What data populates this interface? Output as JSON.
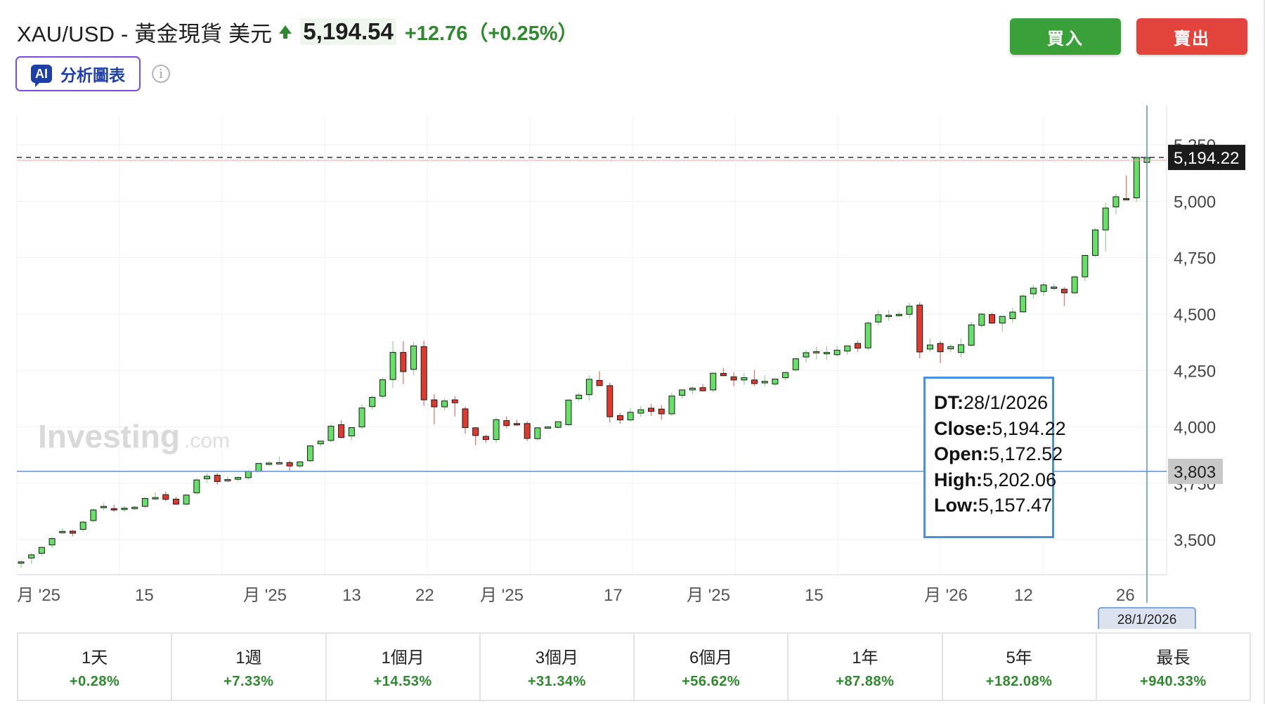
{
  "header": {
    "title": "XAU/USD - 黃金現貨 美元",
    "price": "5,194.54",
    "change": "+12.76（+0.25%）"
  },
  "ai_button": {
    "badge": "AI",
    "label": "分析圖表"
  },
  "info_icon": "info-icon",
  "actions": {
    "buy_label": "買入",
    "sell_label": "賣出"
  },
  "colors": {
    "up": "#3aa13a",
    "up_fill": "#66e066",
    "down": "#e03a2e",
    "accent": "#4a90e2",
    "text_green": "#2d8a2d"
  },
  "watermark": {
    "brand": "Investing",
    "suffix": ".com"
  },
  "tooltip": {
    "rows": [
      {
        "key": "DT:",
        "value": "28/1/2026"
      },
      {
        "key": "Close:",
        "value": "5,194.22"
      },
      {
        "key": "Open:",
        "value": "5,172.52"
      },
      {
        "key": "High:",
        "value": "5,202.06"
      },
      {
        "key": "Low:",
        "value": "5,157.47"
      }
    ]
  },
  "periods": [
    {
      "label": "1天",
      "change": "+0.28%"
    },
    {
      "label": "1週",
      "change": "+7.33%"
    },
    {
      "label": "1個月",
      "change": "+14.53%"
    },
    {
      "label": "3個月",
      "change": "+31.34%"
    },
    {
      "label": "6個月",
      "change": "+56.62%"
    },
    {
      "label": "1年",
      "change": "+87.88%"
    },
    {
      "label": "5年",
      "change": "+182.08%"
    },
    {
      "label": "最長",
      "change": "+940.33%"
    }
  ],
  "chart_data": {
    "type": "candlestick",
    "y_ticks": [
      3500,
      3750,
      4000,
      4250,
      4500,
      4750,
      5000,
      5250
    ],
    "y_tick_labels": [
      "3,500",
      "3,750",
      "4,000",
      "4,250",
      "4,500",
      "4,750",
      "5,000",
      "5,250"
    ],
    "ylim": [
      3345,
      5375
    ],
    "x_tick_labels": [
      "月 '25",
      "15",
      "月 '25",
      "13",
      "22",
      "月 '25",
      "17",
      "月 '25",
      "15",
      "月 '26",
      "12",
      "26"
    ],
    "last_price_label": "5,194.22",
    "last_price": 5194.22,
    "crosshair_price_label": "3,803",
    "crosshair_price": 3803,
    "crosshair_date_label": "28/1/2026",
    "candles": [
      {
        "o": 3402,
        "h": 3412,
        "l": 3375,
        "c": 3402
      },
      {
        "o": 3419,
        "h": 3441,
        "l": 3392,
        "c": 3433
      },
      {
        "o": 3440,
        "h": 3470,
        "l": 3428,
        "c": 3466
      },
      {
        "o": 3477,
        "h": 3513,
        "l": 3464,
        "c": 3505
      },
      {
        "o": 3537,
        "h": 3551,
        "l": 3527,
        "c": 3537
      },
      {
        "o": 3538,
        "h": 3545,
        "l": 3515,
        "c": 3529
      },
      {
        "o": 3546,
        "h": 3585,
        "l": 3536,
        "c": 3578
      },
      {
        "o": 3585,
        "h": 3640,
        "l": 3576,
        "c": 3632
      },
      {
        "o": 3644,
        "h": 3664,
        "l": 3630,
        "c": 3648
      },
      {
        "o": 3638,
        "h": 3655,
        "l": 3624,
        "c": 3633
      },
      {
        "o": 3635,
        "h": 3650,
        "l": 3622,
        "c": 3640
      },
      {
        "o": 3641,
        "h": 3650,
        "l": 3632,
        "c": 3644
      },
      {
        "o": 3648,
        "h": 3688,
        "l": 3640,
        "c": 3683
      },
      {
        "o": 3687,
        "h": 3710,
        "l": 3678,
        "c": 3687
      },
      {
        "o": 3700,
        "h": 3714,
        "l": 3671,
        "c": 3679
      },
      {
        "o": 3680,
        "h": 3690,
        "l": 3654,
        "c": 3658
      },
      {
        "o": 3658,
        "h": 3704,
        "l": 3649,
        "c": 3698
      },
      {
        "o": 3708,
        "h": 3773,
        "l": 3698,
        "c": 3765
      },
      {
        "o": 3770,
        "h": 3794,
        "l": 3752,
        "c": 3781
      },
      {
        "o": 3786,
        "h": 3795,
        "l": 3744,
        "c": 3758
      },
      {
        "o": 3767,
        "h": 3781,
        "l": 3755,
        "c": 3767
      },
      {
        "o": 3768,
        "h": 3781,
        "l": 3759,
        "c": 3776
      },
      {
        "o": 3775,
        "h": 3808,
        "l": 3766,
        "c": 3803
      },
      {
        "o": 3803,
        "h": 3834,
        "l": 3797,
        "c": 3838
      },
      {
        "o": 3838,
        "h": 3849,
        "l": 3828,
        "c": 3840
      },
      {
        "o": 3840,
        "h": 3868,
        "l": 3832,
        "c": 3842
      },
      {
        "o": 3842,
        "h": 3851,
        "l": 3805,
        "c": 3827
      },
      {
        "o": 3827,
        "h": 3848,
        "l": 3818,
        "c": 3845
      },
      {
        "o": 3850,
        "h": 3917,
        "l": 3845,
        "c": 3916
      },
      {
        "o": 3925,
        "h": 3937,
        "l": 3913,
        "c": 3937
      },
      {
        "o": 3940,
        "h": 4013,
        "l": 3932,
        "c": 4003
      },
      {
        "o": 4010,
        "h": 4030,
        "l": 3950,
        "c": 3953
      },
      {
        "o": 3960,
        "h": 3980,
        "l": 3941,
        "c": 3997
      },
      {
        "o": 4000,
        "h": 4100,
        "l": 3990,
        "c": 4084
      },
      {
        "o": 4090,
        "h": 4140,
        "l": 4075,
        "c": 4131
      },
      {
        "o": 4136,
        "h": 4220,
        "l": 4126,
        "c": 4209
      },
      {
        "o": 4210,
        "h": 4381,
        "l": 4173,
        "c": 4330
      },
      {
        "o": 4330,
        "h": 4380,
        "l": 4190,
        "c": 4245
      },
      {
        "o": 4255,
        "h": 4376,
        "l": 4230,
        "c": 4359
      },
      {
        "o": 4356,
        "h": 4381,
        "l": 4093,
        "c": 4120
      },
      {
        "o": 4120,
        "h": 4145,
        "l": 4012,
        "c": 4089
      },
      {
        "o": 4089,
        "h": 4128,
        "l": 4073,
        "c": 4115
      },
      {
        "o": 4120,
        "h": 4136,
        "l": 4046,
        "c": 4107
      },
      {
        "o": 4080,
        "h": 4090,
        "l": 3970,
        "c": 3997
      },
      {
        "o": 3996,
        "h": 4000,
        "l": 3919,
        "c": 3962
      },
      {
        "o": 3958,
        "h": 3964,
        "l": 3930,
        "c": 3944
      },
      {
        "o": 3944,
        "h": 4041,
        "l": 3929,
        "c": 4032
      },
      {
        "o": 4028,
        "h": 4046,
        "l": 3995,
        "c": 4006
      },
      {
        "o": 4015,
        "h": 4031,
        "l": 4004,
        "c": 4010
      },
      {
        "o": 4015,
        "h": 4025,
        "l": 3938,
        "c": 3949
      },
      {
        "o": 3948,
        "h": 4000,
        "l": 3939,
        "c": 3996
      },
      {
        "o": 3999,
        "h": 4005,
        "l": 3995,
        "c": 4000
      },
      {
        "o": 3998,
        "h": 4017,
        "l": 3993,
        "c": 4023
      },
      {
        "o": 4010,
        "h": 4122,
        "l": 4004,
        "c": 4119
      },
      {
        "o": 4125,
        "h": 4151,
        "l": 4114,
        "c": 4141
      },
      {
        "o": 4143,
        "h": 4228,
        "l": 4117,
        "c": 4211
      },
      {
        "o": 4206,
        "h": 4247,
        "l": 4186,
        "c": 4183
      },
      {
        "o": 4183,
        "h": 4195,
        "l": 4020,
        "c": 4045
      },
      {
        "o": 4050,
        "h": 4063,
        "l": 4014,
        "c": 4031
      },
      {
        "o": 4031,
        "h": 4083,
        "l": 4022,
        "c": 4065
      },
      {
        "o": 4061,
        "h": 4093,
        "l": 4045,
        "c": 4076
      },
      {
        "o": 4083,
        "h": 4101,
        "l": 4049,
        "c": 4069
      },
      {
        "o": 4079,
        "h": 4097,
        "l": 4032,
        "c": 4058
      },
      {
        "o": 4058,
        "h": 4151,
        "l": 4048,
        "c": 4137
      },
      {
        "o": 4140,
        "h": 4165,
        "l": 4125,
        "c": 4164
      },
      {
        "o": 4164,
        "h": 4180,
        "l": 4145,
        "c": 4172
      },
      {
        "o": 4174,
        "h": 4189,
        "l": 4158,
        "c": 4160
      },
      {
        "o": 4164,
        "h": 4240,
        "l": 4154,
        "c": 4238
      },
      {
        "o": 4237,
        "h": 4261,
        "l": 4225,
        "c": 4227
      },
      {
        "o": 4222,
        "h": 4242,
        "l": 4180,
        "c": 4208
      },
      {
        "o": 4208,
        "h": 4240,
        "l": 4186,
        "c": 4218
      },
      {
        "o": 4208,
        "h": 4253,
        "l": 4180,
        "c": 4192
      },
      {
        "o": 4195,
        "h": 4229,
        "l": 4180,
        "c": 4202
      },
      {
        "o": 4190,
        "h": 4215,
        "l": 4179,
        "c": 4212
      },
      {
        "o": 4218,
        "h": 4233,
        "l": 4205,
        "c": 4241
      },
      {
        "o": 4253,
        "h": 4295,
        "l": 4245,
        "c": 4302
      },
      {
        "o": 4310,
        "h": 4341,
        "l": 4285,
        "c": 4329
      },
      {
        "o": 4333,
        "h": 4358,
        "l": 4300,
        "c": 4334
      },
      {
        "o": 4328,
        "h": 4357,
        "l": 4296,
        "c": 4330
      },
      {
        "o": 4320,
        "h": 4361,
        "l": 4311,
        "c": 4340
      },
      {
        "o": 4336,
        "h": 4358,
        "l": 4320,
        "c": 4359
      },
      {
        "o": 4370,
        "h": 4383,
        "l": 4333,
        "c": 4349
      },
      {
        "o": 4350,
        "h": 4469,
        "l": 4339,
        "c": 4460
      },
      {
        "o": 4465,
        "h": 4515,
        "l": 4448,
        "c": 4497
      },
      {
        "o": 4495,
        "h": 4518,
        "l": 4470,
        "c": 4495
      },
      {
        "o": 4495,
        "h": 4512,
        "l": 4487,
        "c": 4499
      },
      {
        "o": 4499,
        "h": 4550,
        "l": 4482,
        "c": 4535
      },
      {
        "o": 4540,
        "h": 4552,
        "l": 4304,
        "c": 4332
      },
      {
        "o": 4345,
        "h": 4392,
        "l": 4332,
        "c": 4363
      },
      {
        "o": 4370,
        "h": 4381,
        "l": 4283,
        "c": 4333
      },
      {
        "o": 4346,
        "h": 4367,
        "l": 4331,
        "c": 4356
      },
      {
        "o": 4330,
        "h": 4392,
        "l": 4307,
        "c": 4364
      },
      {
        "o": 4362,
        "h": 4465,
        "l": 4357,
        "c": 4452
      },
      {
        "o": 4450,
        "h": 4505,
        "l": 4440,
        "c": 4500
      },
      {
        "o": 4498,
        "h": 4506,
        "l": 4456,
        "c": 4460
      },
      {
        "o": 4460,
        "h": 4490,
        "l": 4421,
        "c": 4490
      },
      {
        "o": 4480,
        "h": 4528,
        "l": 4461,
        "c": 4509
      },
      {
        "o": 4510,
        "h": 4587,
        "l": 4506,
        "c": 4580
      },
      {
        "o": 4590,
        "h": 4630,
        "l": 4568,
        "c": 4615
      },
      {
        "o": 4600,
        "h": 4640,
        "l": 4581,
        "c": 4629
      },
      {
        "o": 4615,
        "h": 4635,
        "l": 4606,
        "c": 4620
      },
      {
        "o": 4610,
        "h": 4620,
        "l": 4535,
        "c": 4594
      },
      {
        "o": 4594,
        "h": 4670,
        "l": 4588,
        "c": 4665
      },
      {
        "o": 4665,
        "h": 4757,
        "l": 4646,
        "c": 4760
      },
      {
        "o": 4760,
        "h": 4882,
        "l": 4753,
        "c": 4873
      },
      {
        "o": 4873,
        "h": 4994,
        "l": 4778,
        "c": 4970
      },
      {
        "o": 4975,
        "h": 5034,
        "l": 4942,
        "c": 5020
      },
      {
        "o": 5012,
        "h": 5115,
        "l": 5005,
        "c": 5011
      },
      {
        "o": 5015,
        "h": 5190,
        "l": 4999,
        "c": 5194
      },
      {
        "o": 5172,
        "h": 5202,
        "l": 5157,
        "c": 5194
      }
    ]
  }
}
